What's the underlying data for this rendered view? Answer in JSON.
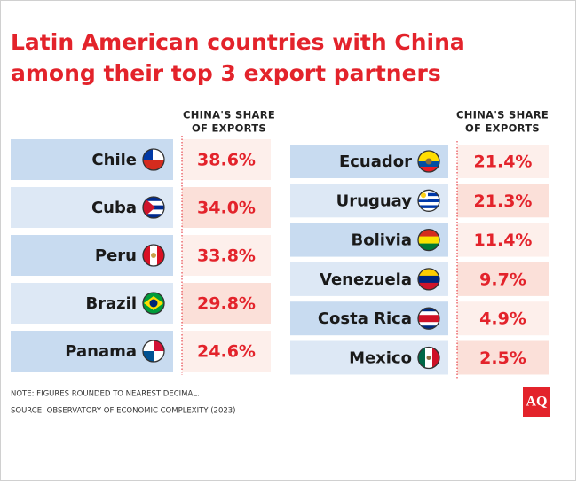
{
  "title": [
    "Latin American countries with China",
    "among their top 3 export partners"
  ],
  "left_table": {
    "header": [
      "CHINA'S SHARE",
      "OF EXPORTS"
    ],
    "rows": [
      [
        "Chile",
        "38.6%"
      ],
      [
        "Cuba",
        "34.0%"
      ],
      [
        "Peru",
        "33.8%"
      ],
      [
        "Brazil",
        "29.8%"
      ],
      [
        "Panama",
        "24.6%"
      ]
    ]
  },
  "right_table": {
    "header": [
      "CHINA'S SHARE",
      "OF EXPORTS"
    ],
    "rows": [
      [
        "Ecuador",
        "21.4%"
      ],
      [
        "Uruguay",
        "21.3%"
      ],
      [
        "Bolivia",
        "11.4%"
      ],
      [
        "Venezuela",
        "9.7%"
      ],
      [
        "Costa Rica",
        "4.9%"
      ],
      [
        "Mexico",
        "2.5%"
      ]
    ]
  },
  "notes": [
    "NOTE: FIGURES ROUNDED TO NEAREST DECIMAL.",
    "SOURCE: OBSERVATORY OF ECONOMIC COMPLEXITY (2023)"
  ],
  "logo": "AQ"
}
